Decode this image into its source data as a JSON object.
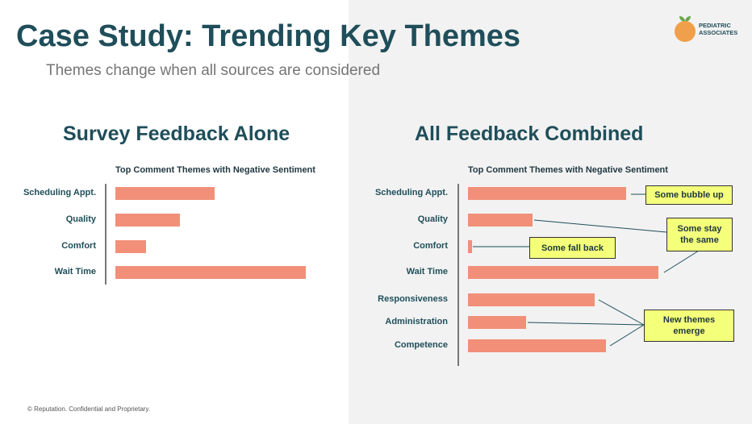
{
  "slide": {
    "title": "Case Study: Trending Key Themes",
    "subtitle": "Themes change when all sources are considered",
    "footer": "© Reputation. Confidential and Proprietary."
  },
  "logo": {
    "line1": "PEDIATRIC",
    "line2": "ASSOCIATES"
  },
  "colors": {
    "title": "#1f4e5a",
    "bar": "#f28f79",
    "callout_fill": "#f4ff7a",
    "right_background": "#f2f2f2",
    "logo_orange": "#f0a04b"
  },
  "chart_data": [
    {
      "type": "bar",
      "orientation": "horizontal",
      "heading": "Survey Feedback Alone",
      "title": "Top Comment Themes with Negative Sentiment",
      "categories": [
        "Scheduling Appt.",
        "Quality",
        "Comfort",
        "Wait Time"
      ],
      "values": [
        127,
        82,
        39,
        243
      ],
      "xlim": [
        0,
        250
      ]
    },
    {
      "type": "bar",
      "orientation": "horizontal",
      "heading": "All Feedback Combined",
      "title": "Top Comment Themes with Negative Sentiment",
      "categories": [
        "Scheduling Appt.",
        "Quality",
        "Comfort",
        "Wait Time",
        "Responsiveness",
        "Administration",
        "Competence"
      ],
      "values": [
        202,
        82,
        5,
        243,
        162,
        74,
        176
      ],
      "xlim": [
        0,
        250
      ],
      "annotations": [
        {
          "text": [
            "Some bubble up"
          ],
          "targets": [
            "Scheduling Appt."
          ]
        },
        {
          "text": [
            "Some stay",
            "the same"
          ],
          "targets": [
            "Quality",
            "Wait Time"
          ]
        },
        {
          "text": [
            "Some fall back"
          ],
          "targets": [
            "Comfort"
          ]
        },
        {
          "text": [
            "New themes",
            "emerge"
          ],
          "targets": [
            "Responsiveness",
            "Administration",
            "Competence"
          ]
        }
      ]
    }
  ]
}
